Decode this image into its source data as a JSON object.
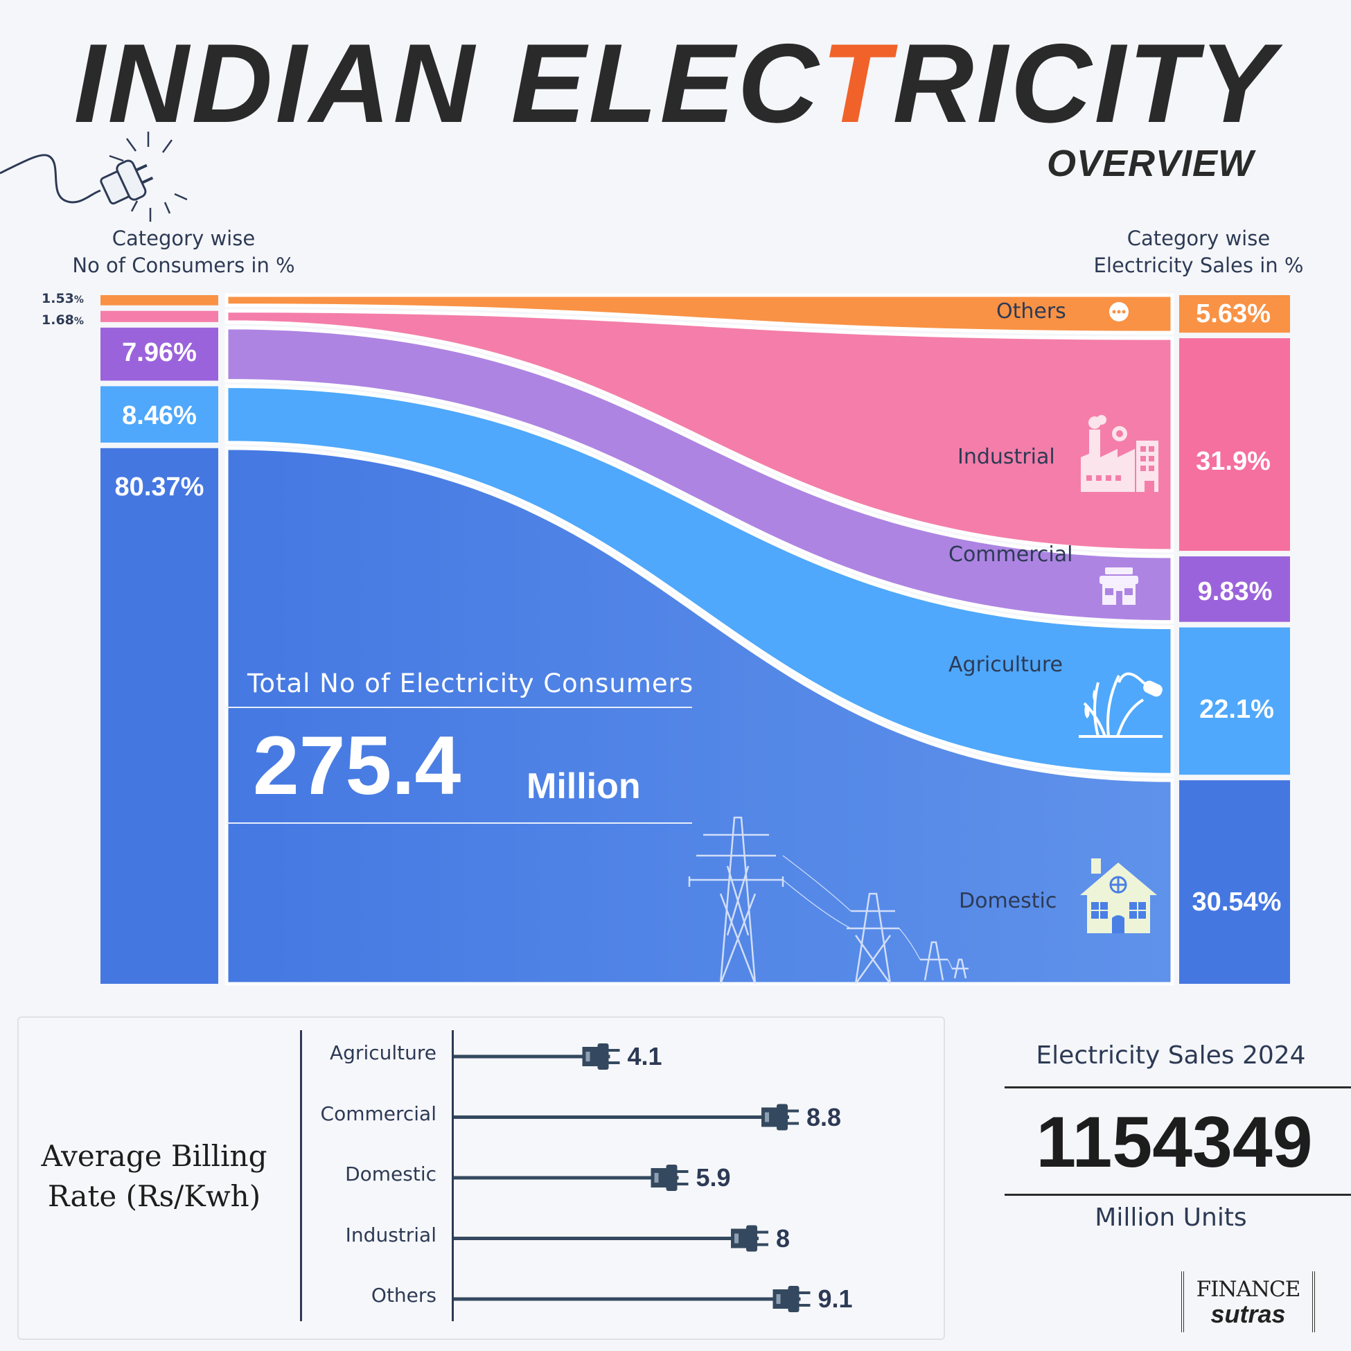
{
  "header": {
    "title_part1": "INDIAN ELEC",
    "title_bolt": "T",
    "title_part2": "RICITY",
    "subtitle": "OVERVIEW"
  },
  "left_heading": {
    "line1": "Category wise",
    "line2": "No of Consumers in %"
  },
  "right_heading": {
    "line1": "Category wise",
    "line2": "Electricity Sales in %"
  },
  "total_consumers": {
    "label": "Total No of Electricity Consumers",
    "value": "275.4",
    "unit": "Million"
  },
  "sales_2024": {
    "title": "Electricity Sales 2024",
    "value": "1154349",
    "unit": "Million Units"
  },
  "billing": {
    "title_line1": "Average Billing",
    "title_line2": "Rate (Rs/Kwh)"
  },
  "brand": {
    "line1": "FINANCE",
    "line2": "sutras"
  },
  "icons": [
    "plug-icon",
    "ellipsis-icon",
    "factory-icon",
    "shop-icon",
    "crop-sprinkler-icon",
    "house-icon",
    "transmission-tower-icon"
  ],
  "chart_data": [
    {
      "type": "sankey",
      "categories": [
        "Others",
        "Industrial",
        "Commercial",
        "Agriculture",
        "Domestic"
      ],
      "consumers_pct": [
        1.53,
        1.68,
        7.96,
        8.46,
        80.37
      ],
      "consumers_pct_labels": [
        "1.53",
        "1.68",
        "7.96%",
        "8.46%",
        "80.37%"
      ],
      "sales_pct": [
        5.63,
        31.9,
        9.83,
        22.1,
        30.54
      ],
      "sales_pct_labels": [
        "5.63%",
        "31.9%",
        "9.83%",
        "22.1%",
        "30.54%"
      ],
      "pct_symbol": "%",
      "colors": [
        "#f99245",
        "#f47ea9",
        "#ad84e2",
        "#4fa8fb",
        "#4a7fe6"
      ],
      "left_colors": [
        "#f99245",
        "#f47ea9",
        "#9b63db",
        "#4fa8fb",
        "#4577e1"
      ],
      "right_colors": [
        "#f99245",
        "#f56f9f",
        "#9b63db",
        "#4fa8fb",
        "#4577e1"
      ]
    },
    {
      "type": "bar",
      "title": "Average Billing Rate (Rs/Kwh)",
      "categories": [
        "Agriculture",
        "Commercial",
        "Domestic",
        "Industrial",
        "Others"
      ],
      "values": [
        4.1,
        8.8,
        5.9,
        8,
        9.1
      ],
      "value_labels": [
        "4.1",
        "8.8",
        "5.9",
        "8",
        "9.1"
      ]
    }
  ]
}
